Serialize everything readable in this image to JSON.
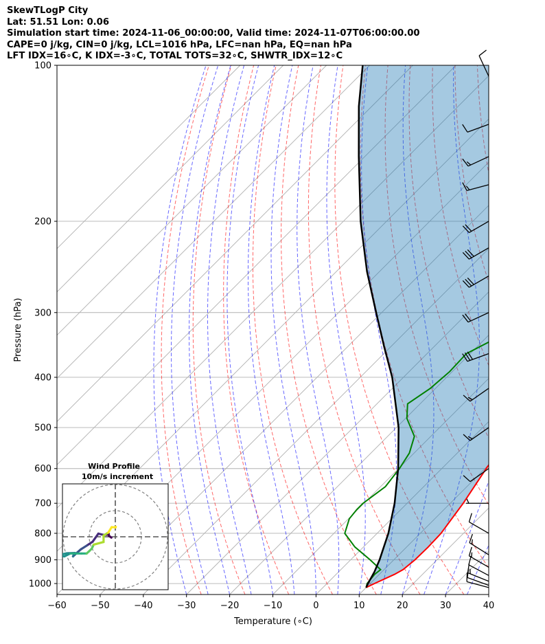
{
  "header": {
    "line1": "SkewTLogP City",
    "line2": "Lat: 51.51   Lon: 0.06",
    "line3": "Simulation start time: 2024-11-06_00:00:00, Valid time: 2024-11-07T06:00:00.00",
    "line4": "CAPE=0 j/kg, CIN=0 j/kg, LCL=1016 hPa, LFC=nan hPa, EQ=nan hPa",
    "line5": "LFT IDX=16∘C, K IDX=-3∘C, TOTAL TOTS=32∘C, SHWTR_IDX=12∘C"
  },
  "chart_data": [
    {
      "type": "line",
      "subtype": "skew-t log-p",
      "xlabel": "Temperature (∘C)",
      "ylabel": "Pressure (hPa)",
      "xlim": [
        -60,
        40
      ],
      "ylim": [
        1050,
        100
      ],
      "y_scale": "log",
      "x_ticks": [
        -60,
        -50,
        -40,
        -30,
        -20,
        -10,
        0,
        10,
        20,
        30,
        40
      ],
      "y_ticks": [
        100,
        200,
        300,
        400,
        500,
        600,
        700,
        800,
        900,
        1000
      ],
      "grid": true,
      "series": [
        {
          "role": "temperature",
          "color": "#ff0000",
          "p": [
            1018,
            1000,
            960,
            940,
            900,
            850,
            800,
            700,
            600,
            500,
            450,
            400,
            350,
            300,
            260,
            240,
            220,
            200,
            180,
            160,
            150,
            140,
            120,
            105,
            100
          ],
          "t": [
            10,
            11,
            13.5,
            14.4,
            14.9,
            15.0,
            14.8,
            13.0,
            10.3,
            7.5,
            4.2,
            0.2,
            -3.5,
            -9.4,
            -13.7,
            -15.8,
            -17.5,
            -18.7,
            -20.4,
            -22.4,
            -24.1,
            -25.9,
            -29.8,
            -32.8,
            -34.3
          ]
        },
        {
          "role": "dewpoint",
          "color": "#008000",
          "p": [
            1018,
            1000,
            960,
            940,
            900,
            850,
            800,
            750,
            720,
            700,
            650,
            600,
            560,
            520,
            480,
            450,
            420,
            390,
            360,
            330,
            300,
            280,
            255,
            240,
            215,
            205,
            185,
            170,
            155,
            145,
            130,
            115,
            100
          ],
          "t": [
            10,
            9.3,
            8.9,
            9.2,
            4.5,
            -2.0,
            -7.5,
            -9.8,
            -10.2,
            -10.2,
            -8.9,
            -9.8,
            -11.1,
            -13.8,
            -19.7,
            -22.9,
            -21.2,
            -20.6,
            -20.9,
            -16.6,
            -17.2,
            -18.4,
            -18.1,
            -21.4,
            -34.0,
            -28.5,
            -30.7,
            -30.4,
            -34.4,
            -36.2,
            -38.2,
            -38.9,
            -41.1
          ]
        },
        {
          "role": "parcel",
          "color": "#000000",
          "p": [
            1018,
            1000,
            950,
            900,
            850,
            800,
            700,
            600,
            500,
            400,
            350,
            300,
            250,
            200,
            150,
            120,
            100
          ],
          "t": [
            10,
            9.5,
            8.3,
            6.7,
            4.7,
            2.6,
            -2.9,
            -10.1,
            -19.5,
            -32.6,
            -41.4,
            -51.3,
            -62.9,
            -76.0,
            -91.4,
            -103.0,
            -111.6
          ]
        }
      ],
      "barbs": [
        {
          "p": 1018,
          "spd": 12,
          "dir": 285
        },
        {
          "p": 1008,
          "spd": 12,
          "dir": 290
        },
        {
          "p": 990,
          "spd": 13,
          "dir": 292
        },
        {
          "p": 965,
          "spd": 12,
          "dir": 298
        },
        {
          "p": 930,
          "spd": 13,
          "dir": 300
        },
        {
          "p": 880,
          "spd": 14,
          "dir": 302
        },
        {
          "p": 800,
          "spd": 10,
          "dir": 300
        },
        {
          "p": 700,
          "spd": 5,
          "dir": 270
        },
        {
          "p": 600,
          "spd": 10,
          "dir": 235
        },
        {
          "p": 500,
          "spd": 15,
          "dir": 235
        },
        {
          "p": 420,
          "spd": 15,
          "dir": 235
        },
        {
          "p": 360,
          "spd": 28,
          "dir": 250
        },
        {
          "p": 300,
          "spd": 20,
          "dir": 245
        },
        {
          "p": 255,
          "spd": 28,
          "dir": 240
        },
        {
          "p": 225,
          "spd": 28,
          "dir": 240
        },
        {
          "p": 200,
          "spd": 20,
          "dir": 240
        },
        {
          "p": 170,
          "spd": 15,
          "dir": 255
        },
        {
          "p": 150,
          "spd": 15,
          "dir": 245
        },
        {
          "p": 130,
          "spd": 10,
          "dir": 250
        },
        {
          "p": 105,
          "spd": 10,
          "dir": 335
        }
      ],
      "hodograph": {
        "title": "Wind Profile",
        "subtitle": "10m/s increment",
        "ring_step": 10,
        "rings": 3,
        "u": [
          -1.5,
          -2.5,
          -2.5,
          -3.4,
          -4.5,
          -6.5,
          -8.7,
          -11,
          -13.2,
          -14.8,
          -16.2,
          -16,
          -15.5,
          -18.5,
          -20.4,
          -21,
          -19.5,
          -17.3,
          -15,
          -13,
          -11,
          -10,
          -9,
          -8.3,
          -4.5,
          -4.5,
          -2.7,
          -1.4,
          0.1,
          0.2
        ],
        "v": [
          -0.3,
          0.4,
          1.1,
          0.8,
          0.7,
          1.2,
          -1.9,
          -3.4,
          -4.8,
          -6.2,
          -7.5,
          -7,
          -6.2,
          -6.3,
          -6.7,
          -7.3,
          -7.5,
          -6.4,
          -6.4,
          -6.4,
          -6.4,
          -5.5,
          -4.5,
          -3.0,
          -2.0,
          0.5,
          1.6,
          3.7,
          3.6,
          3.8
        ]
      }
    }
  ]
}
